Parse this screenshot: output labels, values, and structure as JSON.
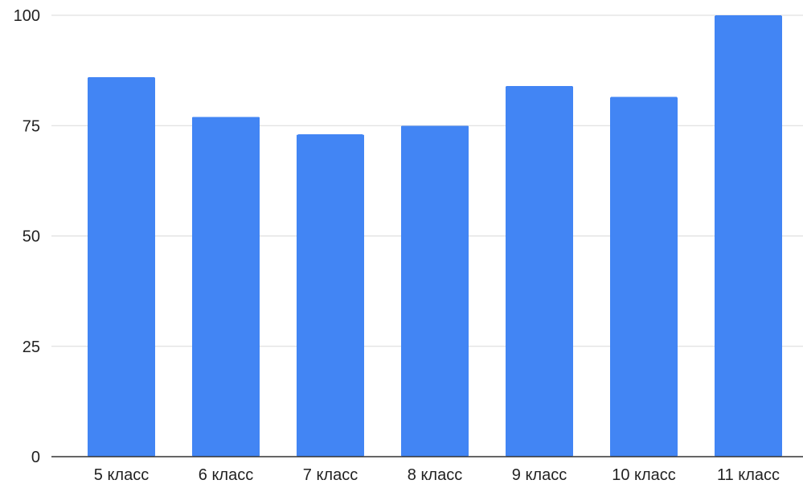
{
  "chart_data": {
    "type": "bar",
    "categories": [
      "5 класс",
      "6 класс",
      "7 класс",
      "8 класс",
      "9 класс",
      "10 класс",
      "11 класс"
    ],
    "values": [
      86,
      77,
      73,
      75,
      84,
      81.5,
      100
    ],
    "yticks": [
      0,
      25,
      50,
      75,
      100
    ],
    "ylim": [
      0,
      100
    ],
    "grid": true,
    "bar_color": "#4285f4"
  }
}
